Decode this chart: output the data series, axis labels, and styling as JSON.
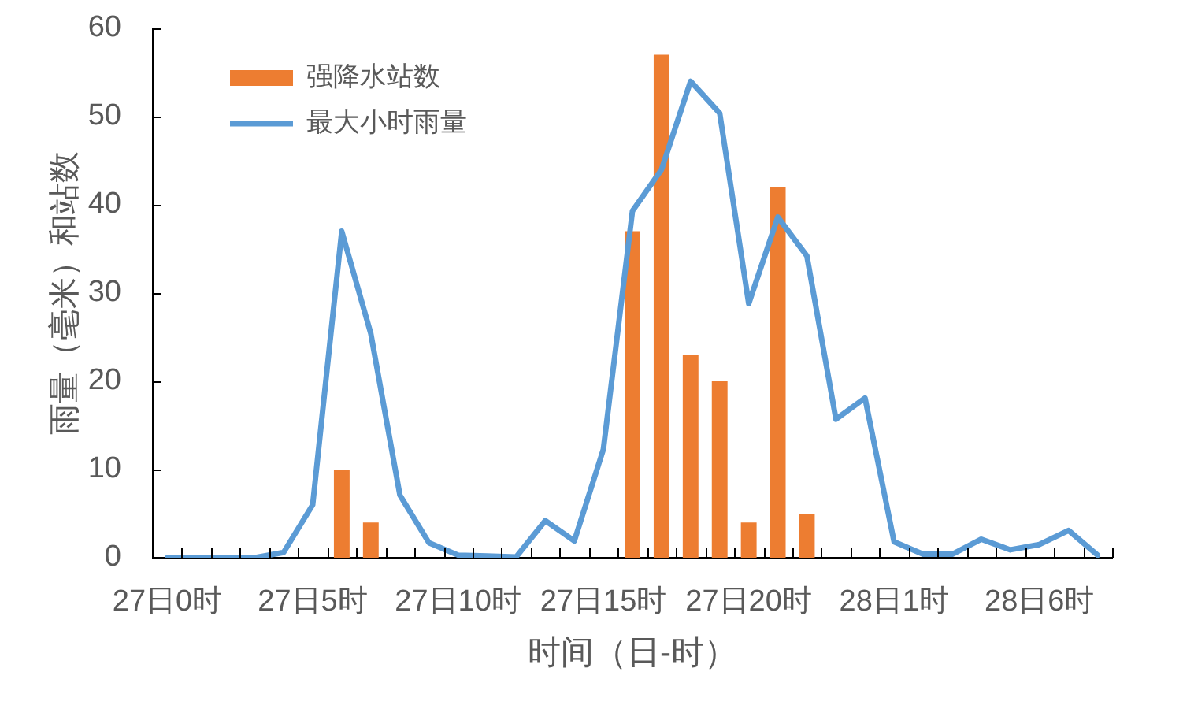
{
  "chart_data": {
    "type": "bar",
    "xlabel": "时间（日-时）",
    "ylabel": "雨量（毫米）和站数",
    "categories": [
      "27日0时",
      null,
      null,
      null,
      null,
      "27日5时",
      null,
      null,
      null,
      null,
      "27日10时",
      null,
      null,
      null,
      null,
      "27日15时",
      null,
      null,
      null,
      null,
      "27日20时",
      null,
      null,
      null,
      null,
      "28日1时",
      null,
      null,
      null,
      null,
      "28日6时",
      null,
      null
    ],
    "series": [
      {
        "name": "强降水站数",
        "color": "#ed7d31",
        "values": [
          null,
          null,
          null,
          null,
          null,
          null,
          10,
          4,
          null,
          null,
          null,
          null,
          null,
          null,
          null,
          null,
          37,
          57,
          23,
          20,
          4,
          42,
          5,
          null,
          null,
          null,
          null,
          null,
          null,
          null,
          null,
          null,
          null
        ]
      },
      {
        "name": "最大小时雨量",
        "type": "line",
        "color": "#5b9bd5",
        "values": [
          0,
          0,
          0,
          0,
          0.6,
          6,
          37,
          25.4,
          7.1,
          1.7,
          0.3,
          0.2,
          0.1,
          4.2,
          1.9,
          12.3,
          39.3,
          44,
          54,
          50.4,
          28.8,
          38.6,
          34.2,
          15.7,
          18.1,
          1.8,
          0.4,
          0.4,
          2.1,
          0.9,
          1.5,
          3.1,
          0.3
        ]
      }
    ],
    "ylim": [
      0,
      60
    ],
    "yticks": [
      0,
      10,
      20,
      30,
      40,
      50,
      60
    ],
    "legend": "top left",
    "marker": "none",
    "line_style": "solid"
  }
}
